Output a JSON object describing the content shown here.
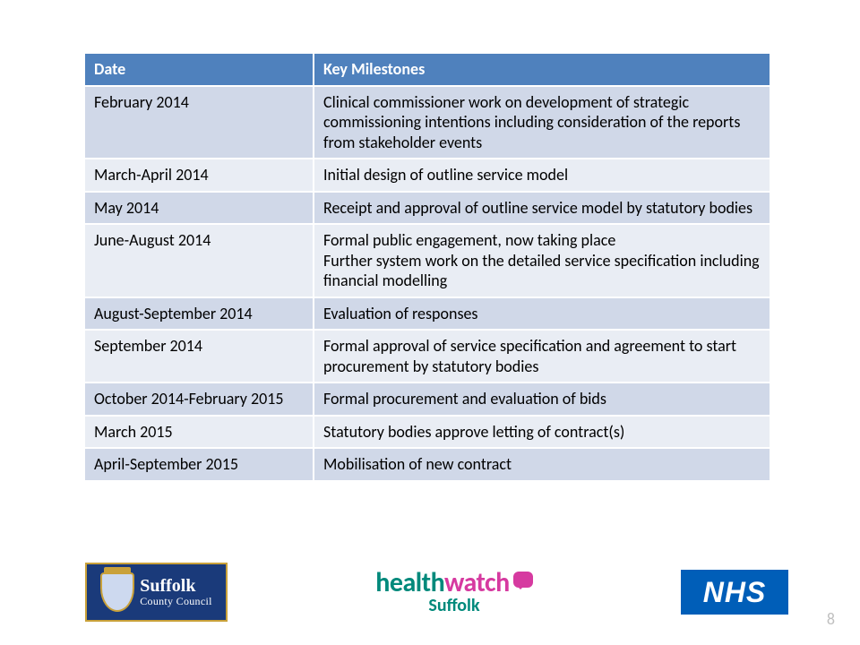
{
  "table": {
    "header_bg": "#4f81bd",
    "header_text_color": "#ffffff",
    "row_bg_even": "#d0d8e8",
    "row_bg_odd": "#e9edf4",
    "text_color": "#000000",
    "border_color": "#ffffff",
    "columns": [
      "Date",
      "Key Milestones"
    ],
    "rows": [
      [
        "February 2014",
        "Clinical commissioner work on development of strategic commissioning intentions including consideration of the reports from stakeholder events"
      ],
      [
        "March-April 2014",
        "Initial design of outline service model"
      ],
      [
        "May 2014",
        "Receipt and approval of outline service model by statutory bodies"
      ],
      [
        "June-August 2014",
        "Formal public engagement, now taking place\nFurther system work on the detailed service specification including financial modelling"
      ],
      [
        "August-September 2014",
        "Evaluation of responses"
      ],
      [
        "September 2014",
        "Formal approval of service specification and agreement to start procurement by statutory bodies"
      ],
      [
        "October 2014-February 2015",
        "Formal procurement and evaluation of bids"
      ],
      [
        "March 2015",
        "Statutory bodies approve letting of contract(s)"
      ],
      [
        "April-September 2015",
        "Mobilisation of new contract"
      ]
    ]
  },
  "logos": {
    "suffolk": {
      "line1": "Suffolk",
      "line2": "County Council",
      "bg": "#1a3a7a",
      "border": "#c9a13a"
    },
    "healthwatch": {
      "part1": "health",
      "part2": "watch",
      "sub": "Suffolk",
      "color1": "#00897b",
      "color2": "#d63aa0"
    },
    "nhs": {
      "text": "NHS",
      "bg": "#005eb8"
    }
  },
  "page_number": "8"
}
